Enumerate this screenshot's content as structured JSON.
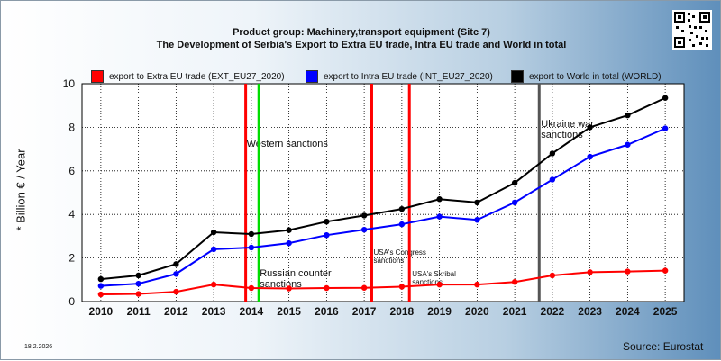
{
  "title_line1": "Product group: Machinery,transport equipment (Sitc 7)",
  "title_line2": "The Development of Serbia's Export to Extra EU trade, Intra EU trade and World in total",
  "date": "18.2.2026",
  "source": "Source: Eurostat",
  "qr_icon": "qr-code-icon",
  "chart_data": {
    "type": "line",
    "ylabel": "* Billion € / Year",
    "xlabel": "",
    "ylim": [
      0,
      10
    ],
    "yticks": [
      0,
      2,
      4,
      6,
      8,
      10
    ],
    "grid": true,
    "legend_placement": "top",
    "categories": [
      "2010",
      "2011",
      "2012",
      "2013",
      "2014",
      "2015",
      "2016",
      "2017",
      "2018",
      "2019",
      "2020",
      "2021",
      "2022",
      "2023",
      "2024",
      "2025"
    ],
    "series": [
      {
        "name": "export to Extra EU trade (EXT_EU27_2020)",
        "color": "#ff0000",
        "values": [
          0.33,
          0.35,
          0.45,
          0.78,
          0.62,
          0.6,
          0.62,
          0.63,
          0.68,
          0.78,
          0.78,
          0.9,
          1.2,
          1.35,
          1.38,
          1.42
        ]
      },
      {
        "name": "export to Intra EU trade (INT_EU27_2020)",
        "color": "#0000ff",
        "values": [
          0.72,
          0.82,
          1.27,
          2.4,
          2.48,
          2.68,
          3.05,
          3.3,
          3.55,
          3.9,
          3.75,
          4.55,
          5.6,
          6.65,
          7.2,
          7.95
        ]
      },
      {
        "name": "export to World in total (WORLD)",
        "color": "#000000",
        "values": [
          1.03,
          1.2,
          1.72,
          3.18,
          3.1,
          3.28,
          3.67,
          3.95,
          4.25,
          4.7,
          4.55,
          5.45,
          6.8,
          8.0,
          8.55,
          9.35
        ]
      }
    ],
    "event_lines": [
      {
        "x": 2013.85,
        "color": "#ff0000",
        "label": "Western sanctions"
      },
      {
        "x": 2014.2,
        "color": "#00dd00",
        "label": "Russian counter sanctions"
      },
      {
        "x": 2017.2,
        "color": "#ff0000",
        "label": "USA's Congress sanctions"
      },
      {
        "x": 2018.2,
        "color": "#ff0000",
        "label": "USA's Skribal sanctions"
      },
      {
        "x": 2021.65,
        "color": "#555555",
        "label": "Ukraine war sanctions"
      }
    ]
  }
}
